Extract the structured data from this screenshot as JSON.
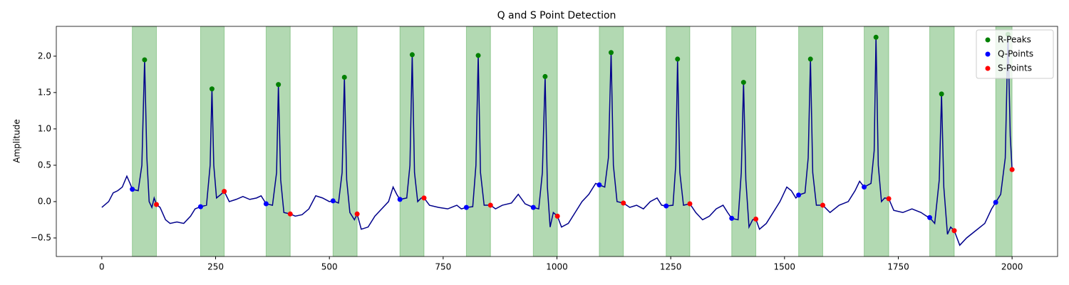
{
  "chart_data": {
    "type": "line",
    "title": "Q and S Point Detection",
    "y_label": "Amplitude",
    "line_color": "#00008b",
    "span_color": "#008000",
    "x": [
      0,
      15,
      25,
      35,
      45,
      55,
      62,
      67,
      80,
      88,
      94,
      99,
      104,
      110,
      115,
      120,
      128,
      140,
      150,
      165,
      180,
      195,
      205,
      217,
      230,
      238,
      242,
      246,
      252,
      262,
      269,
      280,
      295,
      310,
      325,
      340,
      350,
      361,
      375,
      384,
      388,
      393,
      400,
      414,
      425,
      440,
      455,
      470,
      485,
      500,
      508,
      520,
      528,
      533,
      538,
      545,
      555,
      561,
      570,
      585,
      600,
      615,
      630,
      640,
      648,
      655,
      670,
      677,
      682,
      687,
      694,
      702,
      708,
      720,
      740,
      760,
      780,
      790,
      801,
      815,
      822,
      827,
      832,
      840,
      854,
      865,
      880,
      900,
      915,
      930,
      948,
      960,
      968,
      974,
      979,
      985,
      992,
      1001,
      1010,
      1025,
      1040,
      1055,
      1070,
      1085,
      1093,
      1105,
      1113,
      1119,
      1124,
      1132,
      1146,
      1160,
      1175,
      1190,
      1205,
      1220,
      1230,
      1240,
      1255,
      1261,
      1265,
      1270,
      1278,
      1292,
      1305,
      1320,
      1335,
      1350,
      1365,
      1375,
      1384,
      1398,
      1405,
      1410,
      1415,
      1422,
      1430,
      1437,
      1445,
      1460,
      1475,
      1490,
      1505,
      1515,
      1525,
      1531,
      1545,
      1552,
      1557,
      1562,
      1570,
      1584,
      1600,
      1620,
      1640,
      1655,
      1665,
      1675,
      1690,
      1697,
      1701,
      1706,
      1713,
      1720,
      1729,
      1740,
      1760,
      1780,
      1800,
      1812,
      1819,
      1830,
      1840,
      1845,
      1850,
      1858,
      1865,
      1873,
      1885,
      1900,
      1920,
      1940,
      1955,
      1964,
      1975,
      1985,
      1991,
      1996,
      2000
    ],
    "values": [
      -0.08,
      0.0,
      0.12,
      0.15,
      0.2,
      0.35,
      0.25,
      0.17,
      0.15,
      0.5,
      1.95,
      0.6,
      0.0,
      -0.08,
      0.05,
      -0.04,
      -0.08,
      -0.25,
      -0.3,
      -0.28,
      -0.3,
      -0.2,
      -0.1,
      -0.07,
      -0.05,
      0.5,
      1.55,
      0.5,
      0.05,
      0.1,
      0.14,
      0.0,
      0.03,
      0.07,
      0.03,
      0.05,
      0.08,
      -0.03,
      -0.05,
      0.4,
      1.61,
      0.3,
      -0.15,
      -0.17,
      -0.2,
      -0.18,
      -0.1,
      0.08,
      0.05,
      0.0,
      0.01,
      -0.02,
      0.4,
      1.71,
      0.3,
      -0.15,
      -0.25,
      -0.17,
      -0.38,
      -0.35,
      -0.2,
      -0.1,
      0.0,
      0.2,
      0.1,
      0.03,
      0.05,
      0.5,
      2.02,
      0.4,
      0.0,
      0.05,
      0.05,
      -0.05,
      -0.08,
      -0.1,
      -0.05,
      -0.1,
      -0.08,
      -0.07,
      0.5,
      2.01,
      0.4,
      -0.05,
      -0.05,
      -0.1,
      -0.05,
      -0.02,
      0.1,
      -0.03,
      -0.08,
      -0.1,
      0.4,
      1.72,
      0.2,
      -0.35,
      -0.15,
      -0.2,
      -0.35,
      -0.3,
      -0.15,
      0.0,
      0.1,
      0.25,
      0.23,
      0.2,
      0.6,
      2.05,
      0.5,
      0.0,
      -0.02,
      -0.08,
      -0.05,
      -0.1,
      0.0,
      0.05,
      -0.05,
      -0.06,
      -0.05,
      0.5,
      1.96,
      0.4,
      -0.05,
      -0.03,
      -0.15,
      -0.25,
      -0.2,
      -0.1,
      -0.05,
      -0.15,
      -0.23,
      -0.25,
      0.4,
      1.64,
      0.3,
      -0.35,
      -0.25,
      -0.24,
      -0.38,
      -0.3,
      -0.15,
      0.0,
      0.2,
      0.15,
      0.05,
      0.09,
      0.12,
      0.6,
      1.96,
      0.4,
      -0.05,
      -0.05,
      -0.15,
      -0.05,
      0.0,
      0.15,
      0.28,
      0.2,
      0.25,
      0.7,
      2.26,
      0.5,
      0.0,
      0.05,
      0.04,
      -0.12,
      -0.15,
      -0.1,
      -0.15,
      -0.2,
      -0.22,
      -0.3,
      0.3,
      1.48,
      0.2,
      -0.45,
      -0.35,
      -0.4,
      -0.6,
      -0.5,
      -0.4,
      -0.3,
      -0.1,
      -0.01,
      0.1,
      0.6,
      2.3,
      0.9,
      0.44
    ],
    "series": [
      {
        "name": "R-Peaks",
        "color": "#008000",
        "x": [
          94,
          242,
          388,
          533,
          682,
          827,
          974,
          1119,
          1265,
          1410,
          1557,
          1701,
          1845,
          1991
        ],
        "values": [
          1.95,
          1.55,
          1.61,
          1.71,
          2.02,
          2.01,
          1.72,
          2.05,
          1.96,
          1.64,
          1.96,
          2.26,
          1.48,
          2.3
        ]
      },
      {
        "name": "Q-Points",
        "color": "#0000ff",
        "x": [
          67,
          217,
          361,
          508,
          655,
          801,
          948,
          1093,
          1240,
          1384,
          1531,
          1675,
          1819,
          1964
        ],
        "values": [
          0.17,
          -0.07,
          -0.03,
          0.01,
          0.03,
          -0.08,
          -0.08,
          0.23,
          -0.06,
          -0.23,
          0.09,
          0.2,
          -0.22,
          -0.01
        ]
      },
      {
        "name": "S-Points",
        "color": "#ff0000",
        "x": [
          120,
          269,
          414,
          561,
          708,
          854,
          1001,
          1146,
          1292,
          1437,
          1584,
          1729,
          1873,
          2000
        ],
        "values": [
          -0.04,
          0.14,
          -0.17,
          -0.17,
          0.05,
          -0.05,
          -0.2,
          -0.02,
          -0.03,
          -0.24,
          -0.05,
          0.04,
          -0.4,
          0.44
        ]
      }
    ],
    "xlim": [
      -100,
      2100
    ],
    "xticks": [
      0,
      250,
      500,
      750,
      1000,
      1250,
      1500,
      1750,
      2000
    ],
    "ylim": [
      -0.755,
      2.41
    ],
    "yticks": [
      {
        "value": -0.5,
        "label": "−0.5"
      },
      {
        "value": 0,
        "label": "0.0"
      },
      0.5,
      {
        "value": 1,
        "label": "1.0"
      },
      1.5,
      {
        "value": 2,
        "label": "2.0"
      }
    ],
    "legend": "upper right"
  }
}
